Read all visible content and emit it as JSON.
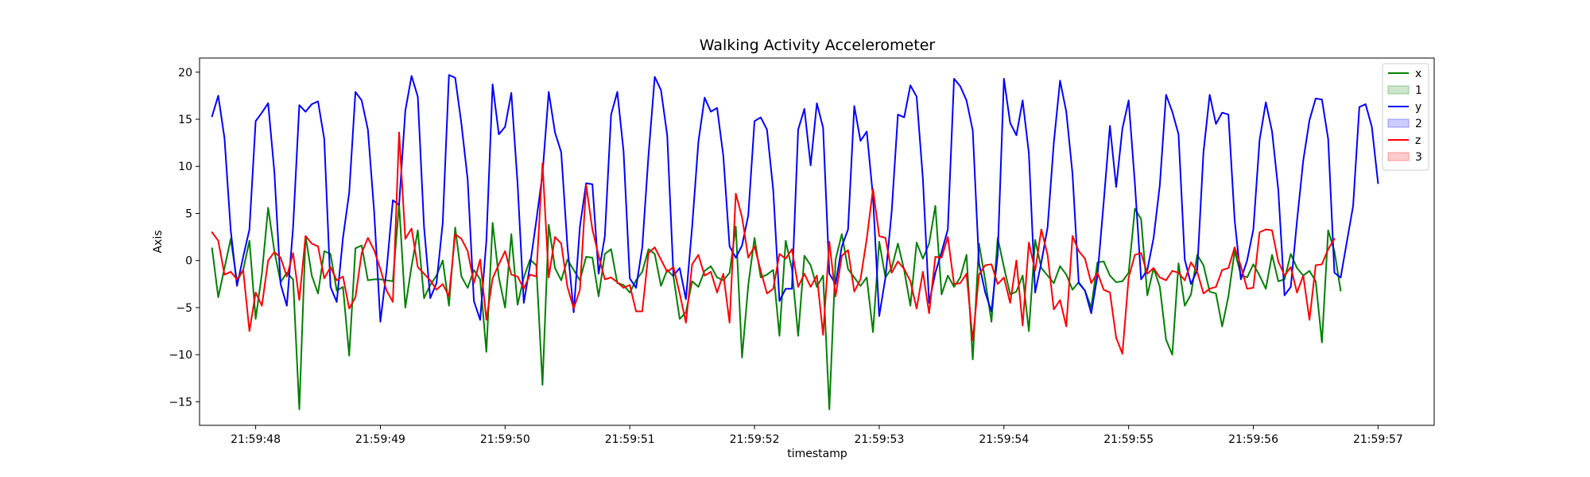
{
  "chart_data": {
    "type": "line",
    "title": "Walking Activity Accelerometer",
    "xlabel": "timestamp",
    "ylabel": "Axis",
    "xlim": [
      -0.45,
      9.45
    ],
    "ylim": [
      -17.5,
      21.5
    ],
    "x_start": 0,
    "x_step": 0.05,
    "xticks": [
      {
        "value": 0,
        "label": "21:59:48"
      },
      {
        "value": 1,
        "label": "21:59:49"
      },
      {
        "value": 2,
        "label": "21:59:50"
      },
      {
        "value": 3,
        "label": "21:59:51"
      },
      {
        "value": 4,
        "label": "21:59:52"
      },
      {
        "value": 5,
        "label": "21:59:53"
      },
      {
        "value": 6,
        "label": "21:59:54"
      },
      {
        "value": 7,
        "label": "21:59:55"
      },
      {
        "value": 8,
        "label": "21:59:56"
      },
      {
        "value": 9,
        "label": "21:59:57"
      }
    ],
    "yticks": [
      -15,
      -10,
      -5,
      0,
      5,
      10,
      15,
      20
    ],
    "legend_position": "top-right",
    "legend": [
      {
        "label": "x",
        "kind": "line",
        "color": "#008000"
      },
      {
        "label": "1",
        "kind": "patch",
        "color": "#008000"
      },
      {
        "label": "y",
        "kind": "line",
        "color": "#0000ff"
      },
      {
        "label": "2",
        "kind": "patch",
        "color": "#0000ff"
      },
      {
        "label": "z",
        "kind": "line",
        "color": "#ff0000"
      },
      {
        "label": "3",
        "kind": "patch",
        "color": "#ff0000"
      }
    ],
    "series": [
      {
        "name": "x",
        "color": "#008000",
        "start": -0.35,
        "values": [
          1.3,
          -3.9,
          -0.8,
          2.3,
          -2.2,
          -1.0,
          2.1,
          -6.2,
          -1.4,
          5.6,
          1.0,
          -2.3,
          -1.3,
          -2.0,
          -15.8,
          2.6,
          -1.6,
          -3.5,
          1.0,
          0.7,
          -3.2,
          -2.8,
          -10.1,
          1.3,
          1.6,
          -2.1,
          -2.0,
          -2.0,
          -2.1,
          -2.2,
          6.0,
          -5.0,
          -0.6,
          3.2,
          -4.0,
          -2.6,
          -1.6,
          0.0,
          -4.8,
          3.5,
          -1.7,
          -2.9,
          -1.0,
          -2.0,
          -9.7,
          4.0,
          -1.8,
          -5.0,
          2.8,
          -4.7,
          -1.8,
          0.1,
          -0.5,
          -13.2,
          3.8,
          -0.8,
          -2.1,
          0.1,
          -1.0,
          -2.1,
          0.4,
          0.3,
          -3.8,
          0.7,
          1.2,
          -2.4,
          -2.6,
          -3.4,
          -2.1,
          -1.2,
          1.2,
          0.7,
          -2.7,
          -1.0,
          -1.7,
          -6.2,
          -5.5,
          -2.2,
          -2.8,
          -1.1,
          -0.6,
          -1.8,
          -2.1,
          -1.3,
          3.6,
          -10.3,
          -2.6,
          2.4,
          -1.8,
          -1.5,
          -1.0,
          -8.0,
          2.1,
          -0.9,
          -8.0,
          0.5,
          -0.5,
          -2.8,
          -1.6,
          -15.8,
          0.1,
          2.8,
          -0.9,
          -1.8,
          -2.7,
          -1.8,
          -7.6,
          2.0,
          -1.8,
          -0.8,
          1.8,
          -1.0,
          -4.8,
          1.9,
          0.2,
          1.8,
          5.8,
          -3.6,
          -1.6,
          -2.8,
          -1.8,
          0.6,
          -10.5,
          1.8,
          -2.1,
          -6.5,
          2.4,
          -0.7,
          -3.6,
          -3.3,
          -1.6,
          -7.5,
          2.2,
          -0.8,
          -1.6,
          -2.4,
          -0.6,
          -1.5,
          -3.1,
          -2.3,
          -3.2,
          -5.0,
          -0.2,
          -0.1,
          -1.6,
          -2.3,
          -2.2,
          -1.3,
          5.5,
          4.4,
          -3.7,
          -0.8,
          -2.8,
          -8.4,
          -10.0,
          -0.3,
          -4.8,
          -3.6,
          0.6,
          -0.5,
          -3.3,
          -3.5,
          -7.0,
          -3.8,
          1.0,
          -1.5,
          -1.8,
          -0.4,
          -1.6,
          -3.0,
          0.6,
          -2.2,
          -2.0,
          0.7,
          -0.8,
          -1.6,
          -1.1,
          -2.2,
          -8.7,
          3.2,
          1.0,
          -3.2
        ]
      },
      {
        "name": "y",
        "color": "#0000ff",
        "start": -0.35,
        "values": [
          15.3,
          17.5,
          13.0,
          3.2,
          -2.7,
          0.4,
          3.3,
          14.8,
          15.7,
          16.7,
          9.4,
          -2.5,
          -4.8,
          3.5,
          16.5,
          15.8,
          16.6,
          16.9,
          12.9,
          -2.8,
          -4.4,
          2.4,
          7.2,
          17.9,
          17.0,
          13.9,
          5.2,
          -6.5,
          -1.0,
          6.4,
          5.9,
          15.9,
          19.6,
          17.4,
          3.6,
          -4.0,
          -2.4,
          4.0,
          19.7,
          19.4,
          14.5,
          8.6,
          -4.3,
          -6.3,
          2.1,
          18.7,
          13.4,
          14.2,
          17.8,
          8.2,
          -4.5,
          -0.5,
          4.2,
          9.2,
          17.9,
          13.6,
          11.5,
          1.5,
          -5.5,
          3.6,
          8.2,
          8.1,
          -1.4,
          2.6,
          15.5,
          17.9,
          11.6,
          -1.9,
          -2.9,
          1.4,
          11.2,
          19.5,
          18.1,
          13.3,
          -1.6,
          -0.8,
          -4.1,
          3.6,
          12.6,
          17.3,
          15.8,
          16.2,
          11.1,
          1.5,
          0.3,
          1.6,
          4.8,
          14.8,
          15.2,
          13.9,
          7.5,
          -4.3,
          -3.0,
          -3.0,
          13.9,
          16.1,
          10.1,
          16.7,
          14.1,
          -1.4,
          -2.5,
          1.5,
          3.3,
          16.4,
          12.7,
          13.7,
          6.8,
          -5.9,
          -1.8,
          5.2,
          15.5,
          15.2,
          18.6,
          17.4,
          8.7,
          -4.5,
          -1.3,
          0.9,
          3.3,
          19.3,
          18.5,
          17.0,
          13.8,
          -0.3,
          -3.4,
          -5.4,
          0.6,
          19.3,
          14.6,
          13.3,
          17.0,
          11.4,
          -3.4,
          -0.2,
          3.5,
          12.5,
          19.1,
          15.8,
          9.2,
          -2.4,
          -3.2,
          -5.6,
          -1.6,
          6.2,
          14.3,
          7.8,
          14.0,
          17.0,
          8.2,
          -2.0,
          -1.0,
          2.4,
          8.0,
          17.6,
          15.8,
          13.4,
          0.1,
          -2.5,
          -1.0,
          11.5,
          17.6,
          14.5,
          15.7,
          15.5,
          4.3,
          -2.0,
          0.0,
          3.3,
          12.8,
          16.8,
          13.7,
          7.5,
          -3.7,
          -2.8,
          4.2,
          10.6,
          14.9,
          17.2,
          17.1,
          12.9,
          -1.3,
          -1.8,
          2.0,
          5.8,
          16.3,
          16.6,
          14.2,
          8.2
        ]
      },
      {
        "name": "z",
        "color": "#ff0000",
        "start": -0.35,
        "values": [
          3.0,
          2.1,
          -1.5,
          -1.2,
          -2.0,
          -1.0,
          -7.5,
          -3.4,
          -4.8,
          0.0,
          0.9,
          0.3,
          -1.7,
          0.8,
          -4.2,
          2.6,
          1.8,
          1.5,
          -1.9,
          -0.7,
          -2.1,
          -1.7,
          -5.1,
          -3.9,
          0.8,
          2.4,
          1.1,
          -0.9,
          -3.2,
          -4.4,
          13.6,
          2.3,
          3.4,
          -0.7,
          -1.4,
          -2.1,
          -3.1,
          -2.5,
          -3.8,
          2.8,
          2.3,
          1.0,
          -2.4,
          0.1,
          -6.3,
          -1.9,
          -0.4,
          1.0,
          -1.5,
          -1.7,
          -3.0,
          -1.5,
          -1.7,
          10.3,
          -1.8,
          2.5,
          1.8,
          -2.8,
          -5.1,
          -3.1,
          8.0,
          3.3,
          0.5,
          -2.0,
          -1.8,
          -2.3,
          -2.9,
          -2.6,
          -5.4,
          -5.4,
          0.8,
          1.4,
          0.1,
          -1.2,
          -0.7,
          -3.5,
          -6.6,
          -0.4,
          0.6,
          -1.6,
          -1.2,
          -3.4,
          -1.4,
          -6.6,
          7.1,
          4.6,
          0.3,
          1.5,
          -1.1,
          -3.5,
          -3.0,
          0.7,
          0.2,
          1.2,
          -2.8,
          -1.4,
          -2.8,
          -1.6,
          -7.9,
          2.0,
          -3.8,
          0.5,
          1.1,
          -3.3,
          -2.0,
          2.3,
          7.6,
          2.6,
          2.4,
          -1.3,
          -0.1,
          -0.9,
          -2.2,
          -5.1,
          -1.2,
          -5.6,
          0.4,
          0.3,
          2.5,
          -2.5,
          -2.4,
          -1.4,
          -8.5,
          -1.5,
          -0.5,
          -0.4,
          -2.5,
          -1.8,
          -4.5,
          0.0,
          -6.9,
          1.9,
          -1.1,
          3.3,
          0.6,
          -5.2,
          -4.2,
          -7.0,
          2.6,
          1.0,
          0.2,
          -2.4,
          -1.3,
          -3.1,
          -3.4,
          -8.2,
          -9.9,
          -1.8,
          0.6,
          0.8,
          -1.4,
          -0.8,
          -1.8,
          -2.1,
          -1.1,
          -1.3,
          -2.1,
          -0.2,
          -1.2,
          -3.5,
          -3.0,
          -2.8,
          -1.0,
          -0.8,
          1.4,
          -0.6,
          -3.0,
          -2.9,
          3.0,
          3.3,
          3.2,
          -0.1,
          -1.6,
          -0.7,
          -3.4,
          -1.6,
          -6.3,
          -0.5,
          -0.4,
          1.2,
          2.3
        ]
      }
    ]
  }
}
